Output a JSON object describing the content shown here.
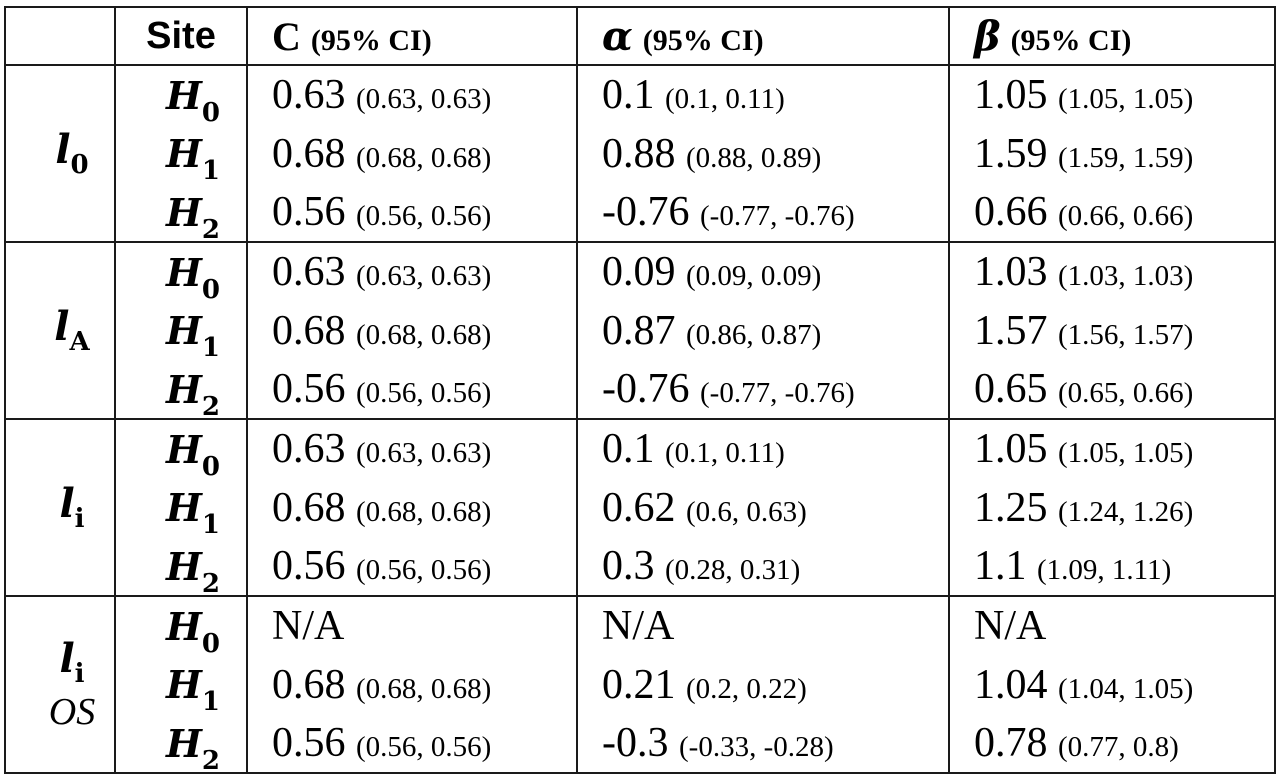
{
  "header": {
    "blank": "",
    "site": "Site",
    "c_symbol": "C",
    "c_ci": "(95% CI)",
    "alpha_symbol": "α",
    "alpha_ci": "(95% CI)",
    "beta_symbol": "β",
    "beta_ci": "(95% CI)"
  },
  "groups": [
    {
      "model": "l",
      "model_sub": "0",
      "model_extra": "",
      "rows": [
        {
          "site": "H",
          "site_sub": "0",
          "c": "0.63",
          "c_ci": "(0.63, 0.63)",
          "alpha": "0.1",
          "alpha_ci": "(0.1, 0.11)",
          "beta": "1.05",
          "beta_ci": "(1.05, 1.05)"
        },
        {
          "site": "H",
          "site_sub": "1",
          "c": "0.68",
          "c_ci": "(0.68, 0.68)",
          "alpha": "0.88",
          "alpha_ci": "(0.88, 0.89)",
          "beta": "1.59",
          "beta_ci": "(1.59, 1.59)"
        },
        {
          "site": "H",
          "site_sub": "2",
          "c": "0.56",
          "c_ci": "(0.56, 0.56)",
          "alpha": "-0.76",
          "alpha_ci": "(-0.77, -0.76)",
          "beta": "0.66",
          "beta_ci": "(0.66, 0.66)"
        }
      ]
    },
    {
      "model": "l",
      "model_sub": "A",
      "model_extra": "",
      "rows": [
        {
          "site": "H",
          "site_sub": "0",
          "c": "0.63",
          "c_ci": "(0.63, 0.63)",
          "alpha": "0.09",
          "alpha_ci": "(0.09, 0.09)",
          "beta": "1.03",
          "beta_ci": "(1.03, 1.03)"
        },
        {
          "site": "H",
          "site_sub": "1",
          "c": "0.68",
          "c_ci": "(0.68, 0.68)",
          "alpha": "0.87",
          "alpha_ci": "(0.86, 0.87)",
          "beta": "1.57",
          "beta_ci": "(1.56, 1.57)"
        },
        {
          "site": "H",
          "site_sub": "2",
          "c": "0.56",
          "c_ci": "(0.56, 0.56)",
          "alpha": "-0.76",
          "alpha_ci": "(-0.77, -0.76)",
          "beta": "0.65",
          "beta_ci": "(0.65, 0.66)"
        }
      ]
    },
    {
      "model": "l",
      "model_sub": "i",
      "model_extra": "",
      "rows": [
        {
          "site": "H",
          "site_sub": "0",
          "c": "0.63",
          "c_ci": "(0.63, 0.63)",
          "alpha": "0.1",
          "alpha_ci": "(0.1, 0.11)",
          "beta": "1.05",
          "beta_ci": "(1.05, 1.05)"
        },
        {
          "site": "H",
          "site_sub": "1",
          "c": "0.68",
          "c_ci": "(0.68, 0.68)",
          "alpha": "0.62",
          "alpha_ci": "(0.6, 0.63)",
          "beta": "1.25",
          "beta_ci": "(1.24, 1.26)"
        },
        {
          "site": "H",
          "site_sub": "2",
          "c": "0.56",
          "c_ci": "(0.56, 0.56)",
          "alpha": "0.3",
          "alpha_ci": "(0.28, 0.31)",
          "beta": "1.1",
          "beta_ci": "(1.09, 1.11)"
        }
      ]
    },
    {
      "model": "l",
      "model_sub": "i",
      "model_extra": "OS",
      "rows": [
        {
          "site": "H",
          "site_sub": "0",
          "c": "N/A",
          "c_ci": "",
          "alpha": "N/A",
          "alpha_ci": "",
          "beta": "N/A",
          "beta_ci": ""
        },
        {
          "site": "H",
          "site_sub": "1",
          "c": "0.68",
          "c_ci": "(0.68, 0.68)",
          "alpha": "0.21",
          "alpha_ci": "(0.2, 0.22)",
          "beta": "1.04",
          "beta_ci": "(1.04, 1.05)"
        },
        {
          "site": "H",
          "site_sub": "2",
          "c": "0.56",
          "c_ci": "(0.56, 0.56)",
          "alpha": "-0.3",
          "alpha_ci": "(-0.33, -0.28)",
          "beta": "0.78",
          "beta_ci": "(0.77, 0.8)"
        }
      ]
    }
  ]
}
